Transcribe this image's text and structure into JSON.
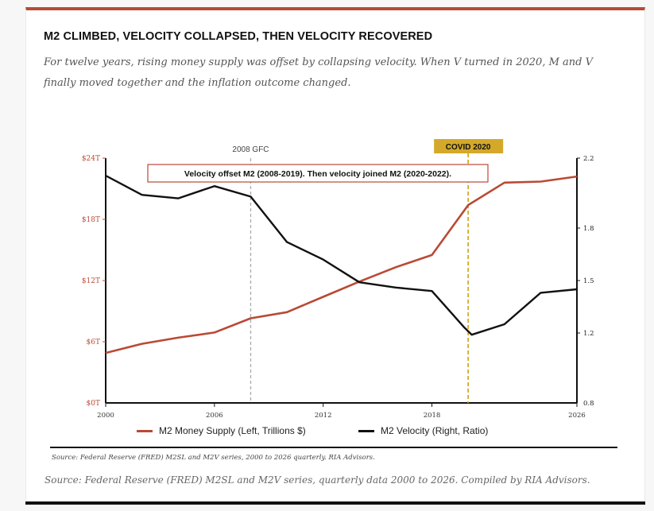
{
  "title": "M2 CLIMBED, VELOCITY COLLAPSED, THEN VELOCITY RECOVERED",
  "subtitle": "For twelve years, rising money supply was offset by collapsing velocity. When V turned in 2020, M and V finally moved together and the inflation outcome changed.",
  "source_small": "Source: Federal Reserve (FRED) M2SL and M2V series, 2000 to 2026 quarterly. RIA Advisors.",
  "source_large": "Source: Federal Reserve (FRED) M2SL and M2V series, quarterly data 2000 to 2026. Compiled by RIA Advisors.",
  "colors": {
    "m2": "#b94a35",
    "velocity": "#111111",
    "gfc_line": "#aaaaaa",
    "covid": "#d4a92a",
    "accent_top": "#b94a35"
  },
  "chart_data": {
    "type": "line",
    "annotation": "Velocity offset M2 (2008-2019). Then velocity joined M2 (2020-2022).",
    "markers": [
      {
        "label": "2008 GFC",
        "x": 2008
      },
      {
        "label": "COVID 2020",
        "x": 2020
      }
    ],
    "x_ticks": [
      "2000",
      "2006",
      "2012",
      "2018",
      "2026"
    ],
    "x_tick_values": [
      2000,
      2006,
      2012,
      2018,
      2026
    ],
    "xlim": [
      2000,
      2026
    ],
    "y_left_ticks": [
      "$0T",
      "$6T",
      "$12T",
      "$18T",
      "$24T"
    ],
    "y_left_values": [
      0,
      6,
      12,
      18,
      24
    ],
    "ylim_left": [
      0,
      24
    ],
    "y_right_ticks": [
      "0.8",
      "1.2",
      "1.5",
      "1.8",
      "2.2"
    ],
    "y_right_values": [
      0.8,
      1.2,
      1.5,
      1.8,
      2.2
    ],
    "ylim_right": [
      0.8,
      2.2
    ],
    "series": [
      {
        "name": "M2 Money Supply (Left, Trillions $)",
        "axis": "left",
        "x": [
          2000,
          2002,
          2004,
          2006,
          2008,
          2010,
          2012,
          2014,
          2016,
          2018,
          2020,
          2022,
          2024,
          2026
        ],
        "values": [
          4.9,
          5.8,
          6.4,
          6.9,
          8.3,
          8.9,
          10.4,
          11.9,
          13.3,
          14.5,
          19.4,
          21.6,
          21.7,
          22.2
        ]
      },
      {
        "name": "M2 Velocity (Right, Ratio)",
        "axis": "right",
        "x": [
          2000,
          2002,
          2004,
          2006,
          2008,
          2010,
          2012,
          2014,
          2016,
          2018,
          2019.8,
          2020.2,
          2022,
          2024,
          2026
        ],
        "values": [
          2.1,
          1.99,
          1.97,
          2.04,
          1.98,
          1.72,
          1.62,
          1.49,
          1.46,
          1.44,
          1.23,
          1.19,
          1.25,
          1.43,
          1.45
        ]
      }
    ]
  }
}
